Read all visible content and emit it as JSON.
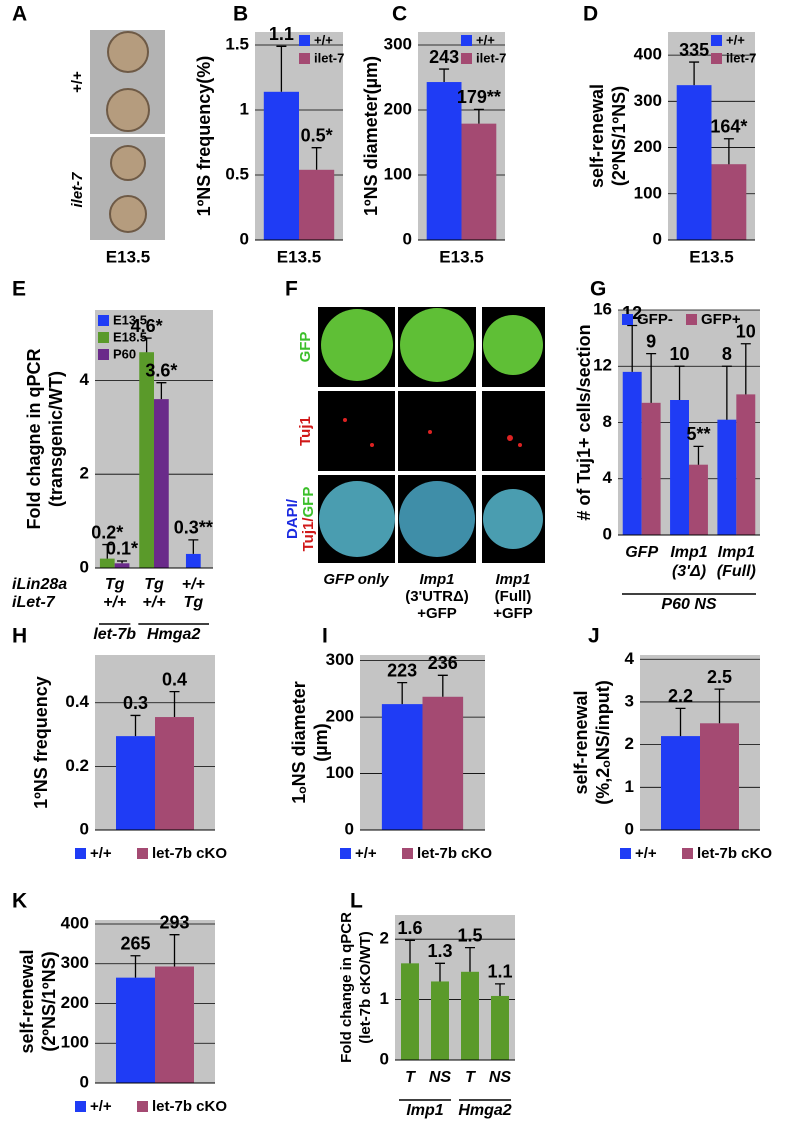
{
  "figure": {
    "panel_letters": [
      "A",
      "B",
      "C",
      "D",
      "E",
      "F",
      "G",
      "H",
      "I",
      "J",
      "K",
      "L"
    ],
    "a": {
      "rows": [
        "+/+",
        "ilet-7"
      ],
      "caption": "E13.5"
    },
    "f": {
      "rows": [
        "GFP",
        "Tuj1"
      ],
      "merge": [
        "DAPI/",
        "Tuj1/",
        "GFP"
      ],
      "columns": [
        [
          "GFP only"
        ],
        [
          "Imp1",
          "(3'UTRΔ)",
          "+GFP"
        ],
        [
          "Imp1",
          "(Full)",
          "+GFP"
        ]
      ]
    }
  },
  "chart_data": [
    {
      "type": "bar",
      "ylabel": "1ºNS frequency(%)",
      "categories": [
        "E13.5"
      ],
      "ylim": [
        0,
        1.6
      ],
      "yticks": [
        0,
        0.5,
        1,
        1.5
      ],
      "grid": true,
      "legend": "upper right",
      "series": [
        {
          "name": "+/+",
          "color": "#1f3cf5",
          "values": [
            1.14
          ],
          "errors": [
            0.35
          ],
          "value_labels": [
            "1.1"
          ]
        },
        {
          "name": "ilet-7",
          "color": "#a44a72",
          "values": [
            0.54
          ],
          "errors": [
            0.17
          ],
          "value_labels": [
            "0.5*"
          ]
        }
      ]
    },
    {
      "type": "bar",
      "ylabel": "1ºNS diameter(µm)",
      "categories": [
        "E13.5"
      ],
      "ylim": [
        0,
        320
      ],
      "yticks": [
        0,
        100,
        200,
        300
      ],
      "grid": true,
      "legend": "upper right",
      "series": [
        {
          "name": "+/+",
          "color": "#1f3cf5",
          "values": [
            243
          ],
          "errors": [
            20
          ],
          "value_labels": [
            "243"
          ]
        },
        {
          "name": "ilet-7",
          "color": "#a44a72",
          "values": [
            179
          ],
          "errors": [
            22
          ],
          "value_labels": [
            "179**"
          ]
        }
      ]
    },
    {
      "type": "bar",
      "ylabel": [
        "self-renewal",
        "(2ºNS/1ºNS)"
      ],
      "categories": [
        "E13.5"
      ],
      "ylim": [
        0,
        450
      ],
      "yticks": [
        0,
        100,
        200,
        300,
        400
      ],
      "grid": true,
      "legend": "upper right",
      "series": [
        {
          "name": "+/+",
          "color": "#1f3cf5",
          "values": [
            335
          ],
          "errors": [
            50
          ],
          "value_labels": [
            "335"
          ]
        },
        {
          "name": "ilet-7",
          "color": "#a44a72",
          "values": [
            164
          ],
          "errors": [
            55
          ],
          "value_labels": [
            "164*"
          ]
        }
      ]
    },
    {
      "type": "bar",
      "ylabel": [
        "Fold chagne in qPCR",
        "(transgenic/WT)"
      ],
      "categories": [
        null,
        null,
        null
      ],
      "ylim": [
        0,
        5.5
      ],
      "yticks": [
        0,
        2,
        4
      ],
      "grid": true,
      "legend": "upper left",
      "series": [
        {
          "name": "E13.5",
          "color": "#1f3cf5",
          "values": [
            null,
            null,
            0.3
          ],
          "errors": [
            null,
            null,
            0.3
          ],
          "value_labels": [
            null,
            null,
            "0.3**"
          ]
        },
        {
          "name": "E18.5",
          "color": "#5a9a2a",
          "values": [
            0.2,
            4.6,
            null
          ],
          "errors": [
            0.3,
            0.3,
            null
          ],
          "value_labels": [
            "0.2*",
            "4.6*",
            null
          ]
        },
        {
          "name": "P60",
          "color": "#6a2a8a",
          "values": [
            0.1,
            3.6,
            null
          ],
          "errors": [
            0.05,
            0.35,
            null
          ],
          "value_labels": [
            "0.1*",
            "3.6*",
            null
          ]
        }
      ],
      "rows": [
        {
          "name": "iLin28a",
          "values": [
            "Tg",
            "Tg",
            "+/+"
          ]
        },
        {
          "name": "iLet-7",
          "values": [
            "+/+",
            "+/+",
            "Tg"
          ]
        }
      ],
      "groups": [
        {
          "label": "let-7b",
          "size": 1
        },
        {
          "label": "Hmga2",
          "size": 2
        }
      ]
    },
    {
      "type": "bar",
      "ylabel": "# of Tuj1+ cells/section",
      "categories": [
        "GFP",
        [
          "Imp1",
          "(3'Δ)"
        ],
        [
          "Imp1",
          "(Full)"
        ]
      ],
      "ylim": [
        0,
        16
      ],
      "yticks": [
        0,
        4,
        8,
        12,
        16
      ],
      "grid": true,
      "legend": "top",
      "series": [
        {
          "name": "GFP-",
          "color": "#1f3cf5",
          "values": [
            11.6,
            9.6,
            8.2
          ],
          "errors": [
            3.3,
            2.4,
            3.8
          ],
          "value_labels": [
            "12",
            "10",
            "8"
          ]
        },
        {
          "name": "GFP+",
          "color": "#a44a72",
          "values": [
            9.4,
            5,
            10
          ],
          "errors": [
            3.5,
            1.3,
            3.6
          ],
          "value_labels": [
            "9",
            "5**",
            "10"
          ]
        }
      ],
      "groups": [
        {
          "label": "P60 NS",
          "size": 3
        }
      ]
    },
    {
      "type": "bar",
      "ylabel": "1ºNS frequency",
      "categories": [
        null
      ],
      "ylim": [
        0,
        0.55
      ],
      "yticks": [
        0,
        0.2,
        0.4
      ],
      "grid": true,
      "legend": "below",
      "series": [
        {
          "name": "+/+",
          "color": "#1f3cf5",
          "values": [
            0.295
          ],
          "errors": [
            0.065
          ],
          "value_labels": [
            "0.3"
          ]
        },
        {
          "name": "let-7b cKO",
          "color": "#a44a72",
          "values": [
            0.355
          ],
          "errors": [
            0.08
          ],
          "value_labels": [
            "0.4"
          ]
        }
      ]
    },
    {
      "type": "bar",
      "ylabel": [
        "1ₒNS diameter",
        "(µm)"
      ],
      "categories": [
        null
      ],
      "ylim": [
        0,
        310
      ],
      "yticks": [
        0,
        100,
        200,
        300
      ],
      "grid": true,
      "legend": "below",
      "series": [
        {
          "name": "+/+",
          "color": "#1f3cf5",
          "values": [
            223
          ],
          "errors": [
            38
          ]
        },
        {
          "name": "let-7b cKO",
          "color": "#a44a72",
          "values": [
            236
          ],
          "errors": [
            38
          ]
        }
      ]
    },
    {
      "type": "bar",
      "ylabel": [
        "self-renewal",
        "(%,2ₒNS/input)"
      ],
      "categories": [
        null
      ],
      "ylim": [
        0,
        4.1
      ],
      "yticks": [
        0,
        1,
        2,
        3,
        4
      ],
      "grid": true,
      "legend": "below",
      "series": [
        {
          "name": "+/+",
          "color": "#1f3cf5",
          "values": [
            2.2
          ],
          "errors": [
            0.65
          ]
        },
        {
          "name": "let-7b cKO",
          "color": "#a44a72",
          "values": [
            2.5
          ],
          "errors": [
            0.8
          ]
        }
      ]
    },
    {
      "type": "bar",
      "ylabel": [
        "self-renewal",
        "(2ºNS/1ºNS)"
      ],
      "categories": [
        null
      ],
      "ylim": [
        0,
        410
      ],
      "yticks": [
        0,
        100,
        200,
        300,
        400
      ],
      "grid": true,
      "legend": "below",
      "series": [
        {
          "name": "+/+",
          "color": "#1f3cf5",
          "values": [
            265
          ],
          "errors": [
            55
          ]
        },
        {
          "name": "let-7b cKO",
          "color": "#a44a72",
          "values": [
            293
          ],
          "errors": [
            80
          ]
        }
      ]
    },
    {
      "type": "bar",
      "ylabel": [
        "Fold change in qPCR",
        "(let-7b cKO/WT)"
      ],
      "categories": [
        "T",
        "NS",
        "T",
        "NS"
      ],
      "ylim": [
        0,
        2.4
      ],
      "yticks": [
        0,
        1,
        2
      ],
      "grid": true,
      "color": "#5a9a2a",
      "values": [
        1.6,
        1.3,
        1.46,
        1.06
      ],
      "errors": [
        0.38,
        0.3,
        0.4,
        0.2
      ],
      "value_labels": [
        "1.6",
        "1.3",
        "1.5",
        "1.1"
      ],
      "groups": [
        {
          "label": "Imp1",
          "size": 2
        },
        {
          "label": "Hmga2",
          "size": 2
        }
      ]
    }
  ]
}
